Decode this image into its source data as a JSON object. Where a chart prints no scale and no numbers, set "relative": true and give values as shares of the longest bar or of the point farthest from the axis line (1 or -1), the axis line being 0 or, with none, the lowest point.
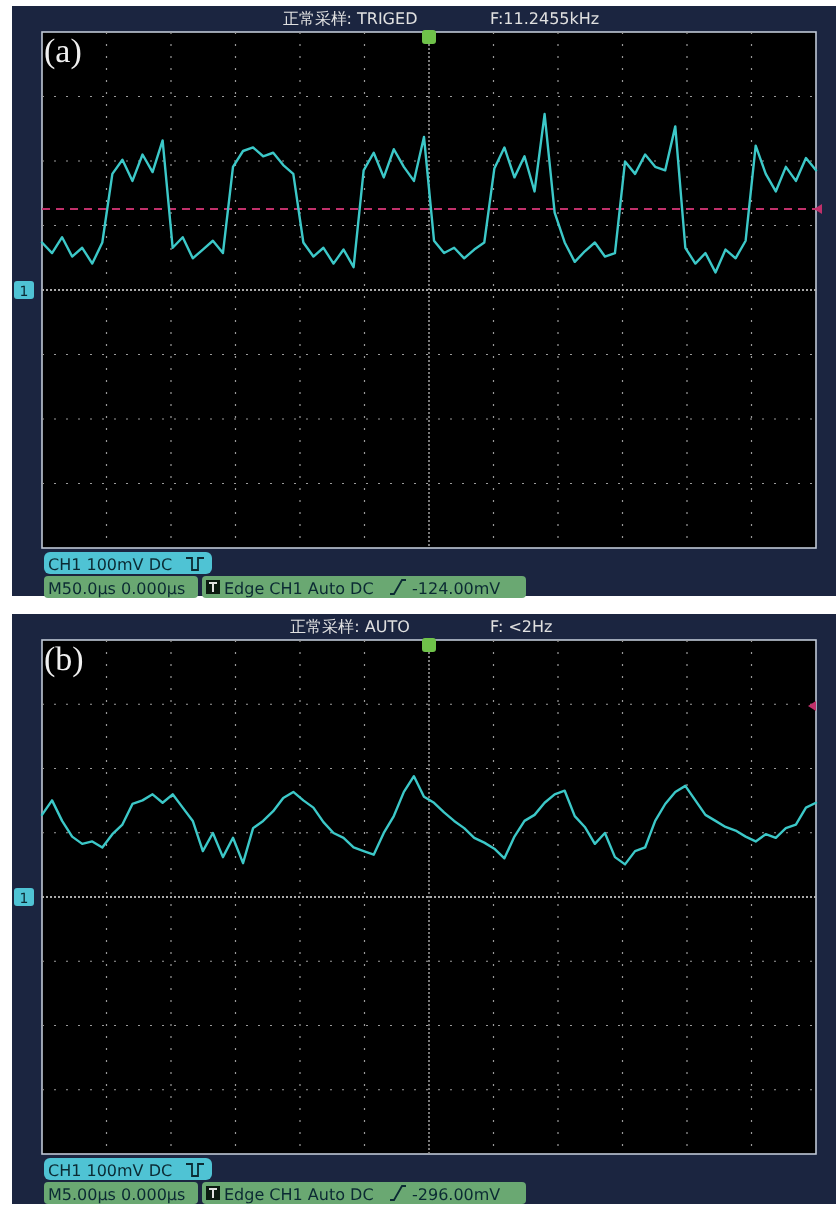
{
  "chart_data": [
    {
      "type": "line",
      "title": "(a)",
      "relative": true,
      "grid": true,
      "annotations": [
        "正常采样: TRIGED",
        "F:11.2455kHz",
        "CH1 100mV DC",
        "M50.0μs 0.000μs",
        "Edge CH1 Auto DC",
        "-124.00mV",
        "1"
      ],
      "ref_lines": [
        {
          "axis": "y",
          "value": 0.46,
          "color": "#c0306a",
          "line_style": "dashed"
        }
      ],
      "categories": [
        null,
        null,
        null,
        null,
        null,
        null,
        null,
        null,
        null,
        null,
        null,
        null,
        null,
        null,
        null,
        null,
        null,
        null,
        null,
        null,
        null,
        null,
        null,
        null,
        null,
        null,
        null,
        null,
        null,
        null,
        null,
        null,
        null,
        null,
        null,
        null,
        null,
        null,
        null,
        null,
        null,
        null,
        null,
        null,
        null,
        null,
        null,
        null,
        null,
        null,
        null,
        null,
        null,
        null,
        null,
        null,
        null,
        null,
        null,
        null,
        null,
        null,
        null,
        null,
        null,
        null,
        null,
        null,
        null,
        null,
        null,
        null,
        null,
        null,
        null,
        null,
        null,
        null
      ],
      "series": [
        {
          "color": "#3cc8c8",
          "values": [
            0.27,
            0.21,
            0.3,
            0.19,
            0.24,
            0.15,
            0.27,
            0.66,
            0.74,
            0.62,
            0.77,
            0.67,
            0.85,
            0.24,
            0.3,
            0.18,
            0.23,
            0.28,
            0.21,
            0.7,
            0.79,
            0.81,
            0.76,
            0.78,
            0.71,
            0.66,
            0.27,
            0.19,
            0.24,
            0.15,
            0.23,
            0.13,
            0.68,
            0.78,
            0.64,
            0.8,
            0.7,
            0.62,
            0.87,
            0.28,
            0.21,
            0.24,
            0.18,
            0.23,
            0.27,
            0.69,
            0.81,
            0.64,
            0.76,
            0.56,
            1.0,
            0.44,
            0.27,
            0.16,
            0.22,
            0.27,
            0.19,
            0.21,
            0.73,
            0.66,
            0.77,
            0.7,
            0.68,
            0.93,
            0.24,
            0.15,
            0.21,
            0.1,
            0.23,
            0.18,
            0.28,
            0.82,
            0.66,
            0.56,
            0.7,
            0.62,
            0.75,
            0.68
          ]
        }
      ]
    },
    {
      "type": "line",
      "title": "(b)",
      "relative": true,
      "grid": true,
      "annotations": [
        "正常采样: AUTO",
        "F: <2Hz",
        "CH1 100mV DC",
        "M5.00μs 0.000μs",
        "Edge CH1 Auto DC",
        "-296.00mV",
        "1"
      ],
      "categories": [
        null,
        null,
        null,
        null,
        null,
        null,
        null,
        null,
        null,
        null,
        null,
        null,
        null,
        null,
        null,
        null,
        null,
        null,
        null,
        null,
        null,
        null,
        null,
        null,
        null,
        null,
        null,
        null,
        null,
        null,
        null,
        null,
        null,
        null,
        null,
        null,
        null,
        null,
        null,
        null,
        null,
        null,
        null,
        null,
        null,
        null,
        null,
        null,
        null,
        null,
        null,
        null,
        null,
        null,
        null,
        null,
        null,
        null,
        null,
        null,
        null,
        null,
        null,
        null,
        null,
        null,
        null,
        null,
        null,
        null,
        null,
        null,
        null,
        null,
        null,
        null,
        null,
        null
      ],
      "series": [
        {
          "color": "#3cc8c8",
          "values": [
            0.68,
            0.8,
            0.63,
            0.5,
            0.44,
            0.46,
            0.41,
            0.52,
            0.6,
            0.77,
            0.8,
            0.85,
            0.78,
            0.85,
            0.74,
            0.63,
            0.38,
            0.53,
            0.33,
            0.49,
            0.28,
            0.57,
            0.63,
            0.71,
            0.82,
            0.87,
            0.8,
            0.74,
            0.62,
            0.53,
            0.49,
            0.41,
            0.38,
            0.35,
            0.53,
            0.67,
            0.87,
            1.0,
            0.83,
            0.78,
            0.7,
            0.63,
            0.57,
            0.49,
            0.45,
            0.4,
            0.32,
            0.5,
            0.63,
            0.68,
            0.78,
            0.85,
            0.88,
            0.67,
            0.58,
            0.44,
            0.53,
            0.33,
            0.27,
            0.38,
            0.41,
            0.63,
            0.77,
            0.87,
            0.92,
            0.8,
            0.68,
            0.63,
            0.58,
            0.55,
            0.5,
            0.46,
            0.52,
            0.49,
            0.57,
            0.6,
            0.74,
            0.78
          ]
        }
      ]
    }
  ]
}
